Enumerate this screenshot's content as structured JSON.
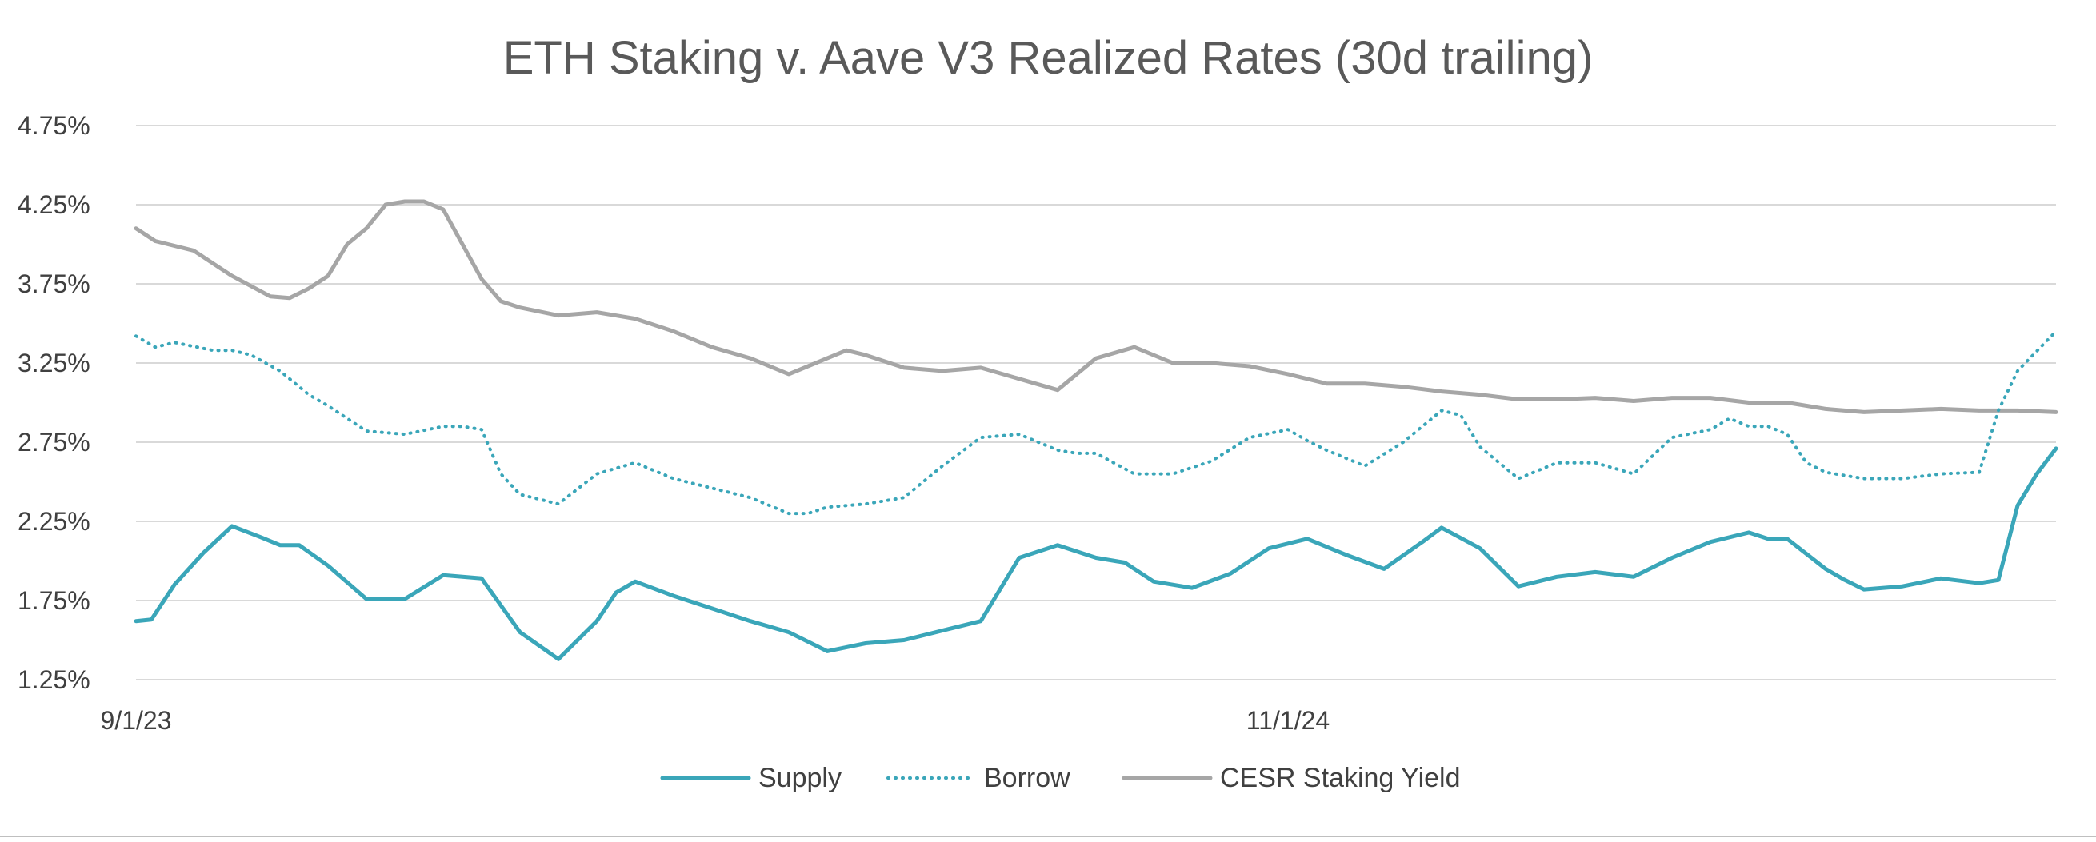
{
  "chart_data": {
    "type": "line",
    "title": "ETH Staking v. Aave V3 Realized Rates (30d trailing)",
    "xlabel": "",
    "ylabel": "",
    "x_ticks": [
      "9/1/23",
      "11/1/24"
    ],
    "y_ticks": [
      "1.25%",
      "1.75%",
      "2.25%",
      "2.75%",
      "3.25%",
      "3.75%",
      "4.25%",
      "4.75%"
    ],
    "ylim": [
      1.25,
      4.75
    ],
    "grid": true,
    "legend_position": "bottom",
    "x_index_range": [
      0,
      100
    ],
    "x_tick_indices": [
      0,
      60
    ],
    "series": [
      {
        "name": "Supply",
        "color": "#3aa6b9",
        "style": "solid",
        "x": [
          0,
          0.8,
          2,
          3.5,
          5,
          6.5,
          7.5,
          8.5,
          10,
          12,
          14,
          16,
          18,
          20,
          22,
          24,
          25,
          26,
          28,
          30,
          32,
          34,
          36,
          38,
          40,
          42,
          44,
          46,
          48,
          50,
          51.5,
          53,
          55,
          57,
          59,
          61,
          63,
          65,
          67,
          68,
          70,
          72,
          74,
          76,
          78,
          80,
          82,
          84,
          85,
          86,
          88,
          89,
          90,
          92,
          94,
          96,
          97,
          98,
          99,
          100
        ],
        "values": [
          1.62,
          1.63,
          1.85,
          2.05,
          2.22,
          2.15,
          2.1,
          2.1,
          1.97,
          1.76,
          1.76,
          1.91,
          1.89,
          1.55,
          1.38,
          1.62,
          1.8,
          1.87,
          1.78,
          1.7,
          1.62,
          1.55,
          1.43,
          1.48,
          1.5,
          1.56,
          1.62,
          2.02,
          2.1,
          2.02,
          1.99,
          1.87,
          1.83,
          1.92,
          2.08,
          2.14,
          2.04,
          1.95,
          2.12,
          2.21,
          2.08,
          1.84,
          1.9,
          1.93,
          1.9,
          2.02,
          2.12,
          2.18,
          2.14,
          2.14,
          1.95,
          1.88,
          1.82,
          1.84,
          1.89,
          1.86,
          1.88,
          2.35,
          2.55,
          2.71
        ]
      },
      {
        "name": "Borrow",
        "color": "#3aa6b9",
        "style": "dotted",
        "x": [
          0,
          1,
          2,
          4,
          5,
          6,
          7.5,
          9,
          10,
          12,
          14,
          16,
          17,
          18,
          19,
          20,
          22,
          24,
          26,
          28,
          30,
          32,
          34,
          35,
          36,
          38,
          40,
          42,
          44,
          46,
          48,
          49,
          50,
          52,
          54,
          56,
          58,
          60,
          61,
          62,
          64,
          66,
          68,
          69,
          70,
          72,
          74,
          76,
          78,
          80,
          82,
          83,
          84,
          85,
          86,
          87,
          88,
          90,
          92,
          94,
          96,
          97,
          98,
          100
        ],
        "values": [
          3.42,
          3.35,
          3.38,
          3.33,
          3.33,
          3.3,
          3.2,
          3.05,
          2.98,
          2.82,
          2.8,
          2.85,
          2.85,
          2.83,
          2.55,
          2.42,
          2.36,
          2.55,
          2.62,
          2.52,
          2.46,
          2.4,
          2.3,
          2.3,
          2.34,
          2.36,
          2.4,
          2.6,
          2.78,
          2.8,
          2.7,
          2.68,
          2.68,
          2.55,
          2.55,
          2.63,
          2.78,
          2.83,
          2.76,
          2.7,
          2.6,
          2.75,
          2.95,
          2.92,
          2.72,
          2.52,
          2.62,
          2.62,
          2.55,
          2.78,
          2.83,
          2.9,
          2.85,
          2.85,
          2.8,
          2.62,
          2.56,
          2.52,
          2.52,
          2.55,
          2.56,
          2.95,
          3.2,
          3.45
        ]
      },
      {
        "name": "CESR Staking Yield",
        "color": "#a6a6a6",
        "style": "solid",
        "x": [
          0,
          1,
          3,
          4,
          5,
          7,
          8,
          9,
          10,
          11,
          12,
          13,
          14,
          15,
          16,
          17,
          18,
          19,
          20,
          22,
          24,
          26,
          28,
          30,
          32,
          34,
          36,
          37,
          38,
          40,
          42,
          44,
          46,
          48,
          50,
          52,
          54,
          56,
          58,
          60,
          62,
          64,
          66,
          68,
          70,
          72,
          74,
          76,
          78,
          80,
          82,
          84,
          86,
          88,
          90,
          92,
          94,
          96,
          98,
          100
        ],
        "values": [
          4.1,
          4.02,
          3.96,
          3.88,
          3.8,
          3.67,
          3.66,
          3.72,
          3.8,
          4.0,
          4.1,
          4.25,
          4.27,
          4.27,
          4.22,
          4.0,
          3.78,
          3.64,
          3.6,
          3.55,
          3.57,
          3.53,
          3.45,
          3.35,
          3.28,
          3.18,
          3.28,
          3.33,
          3.3,
          3.22,
          3.2,
          3.22,
          3.15,
          3.08,
          3.28,
          3.35,
          3.25,
          3.25,
          3.23,
          3.18,
          3.12,
          3.12,
          3.1,
          3.07,
          3.05,
          3.02,
          3.02,
          3.03,
          3.01,
          3.03,
          3.03,
          3.0,
          3.0,
          2.96,
          2.94,
          2.95,
          2.96,
          2.95,
          2.95,
          2.94
        ]
      }
    ]
  }
}
